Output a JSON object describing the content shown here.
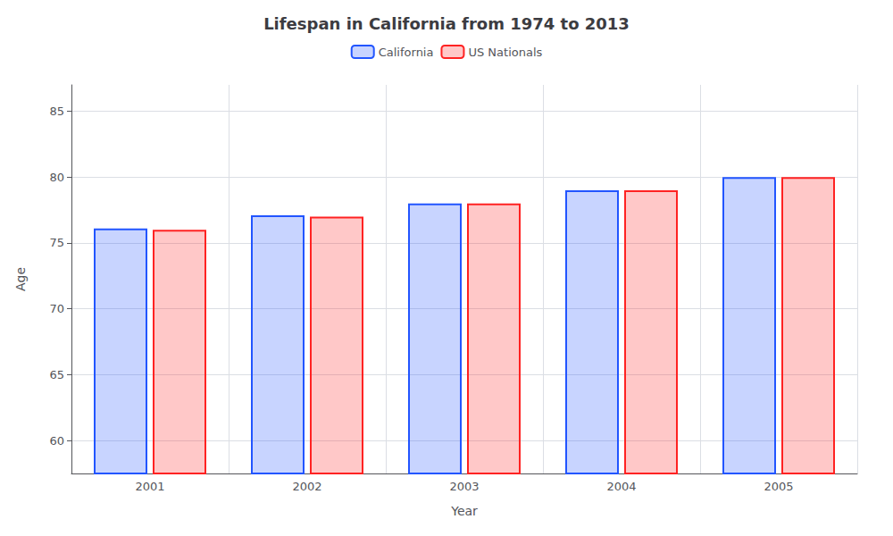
{
  "chart_data": {
    "type": "bar",
    "title": "Lifespan in California from 1974 to 2013",
    "xlabel": "Year",
    "ylabel": "Age",
    "categories": [
      "2001",
      "2002",
      "2003",
      "2004",
      "2005"
    ],
    "series": [
      {
        "name": "California",
        "color": "#2255ff",
        "values": [
          76.1,
          77.1,
          78.0,
          79.0,
          80.0
        ]
      },
      {
        "name": "US Nationals",
        "color": "#ff2222",
        "values": [
          76.0,
          77.0,
          78.0,
          79.0,
          80.0
        ]
      }
    ],
    "ylim": [
      57.5,
      87
    ],
    "yticks": [
      60,
      65,
      70,
      75,
      80,
      85
    ],
    "grid": true,
    "legend": "top"
  }
}
